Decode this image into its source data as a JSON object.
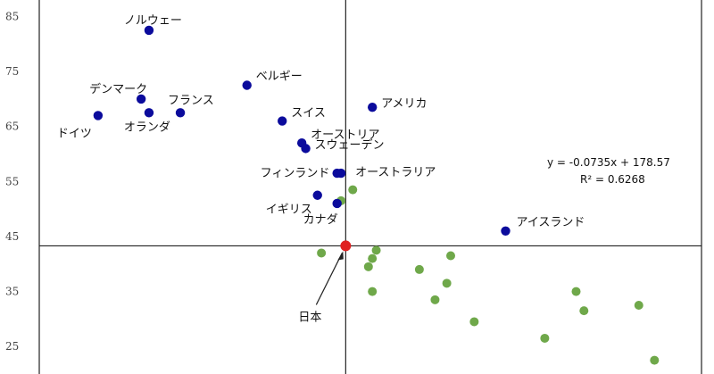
{
  "chart_data": {
    "type": "scatter",
    "y_ticks": [
      25,
      35,
      45,
      55,
      65,
      75,
      85
    ],
    "ylim": [
      20,
      88
    ],
    "xlim": [
      133.5,
      218
    ],
    "reference_lines": {
      "x": 172.6,
      "y": 43.3
    },
    "trendline": {
      "equation": "y = -0.0735x + 178.57",
      "r2": "R² = 0.6268",
      "style": "dotted",
      "from_x": 143,
      "to_x": 208
    },
    "colors": {
      "labeled": "#0b0b9c",
      "unlabeled": "#6fa84a",
      "japan": "#e02020",
      "axis": "#222222"
    },
    "series": [
      {
        "name": "labeled",
        "points": [
          {
            "label": "ノルウェー",
            "x": 147.5,
            "y": 82.5
          },
          {
            "label": "ベルギー",
            "x": 160,
            "y": 72.5
          },
          {
            "label": "デンマーク",
            "x": 146.5,
            "y": 70
          },
          {
            "label": "フランス",
            "x": 151.5,
            "y": 67.5
          },
          {
            "label": "オランダ",
            "x": 147.5,
            "y": 67.5
          },
          {
            "label": "ドイツ",
            "x": 141,
            "y": 67
          },
          {
            "label": "アメリカ",
            "x": 176,
            "y": 68.5
          },
          {
            "label": "スイス",
            "x": 164.5,
            "y": 66
          },
          {
            "label": "オーストリア",
            "x": 167,
            "y": 62
          },
          {
            "label": "スウェーデン",
            "x": 167.5,
            "y": 61
          },
          {
            "label": "フィンランド",
            "x": 171.5,
            "y": 56.5
          },
          {
            "label": "オーストラリア",
            "x": 172,
            "y": 56.5
          },
          {
            "label": "イギリス",
            "x": 169,
            "y": 52.5
          },
          {
            "label": "カナダ",
            "x": 171.5,
            "y": 51
          },
          {
            "label": "アイスランド",
            "x": 193,
            "y": 46
          },
          {
            "label": "日本",
            "x": 172.6,
            "y": 43.3
          }
        ]
      },
      {
        "name": "unlabeled",
        "points": [
          {
            "x": 173.5,
            "y": 53.5
          },
          {
            "x": 172,
            "y": 51.5
          },
          {
            "x": 169.5,
            "y": 42
          },
          {
            "x": 176.5,
            "y": 42.5
          },
          {
            "x": 176,
            "y": 41
          },
          {
            "x": 175.5,
            "y": 39.5
          },
          {
            "x": 176,
            "y": 35
          },
          {
            "x": 182,
            "y": 39
          },
          {
            "x": 186,
            "y": 41.5
          },
          {
            "x": 185.5,
            "y": 36.5
          },
          {
            "x": 184,
            "y": 33.5
          },
          {
            "x": 189,
            "y": 29.5
          },
          {
            "x": 202,
            "y": 35
          },
          {
            "x": 203,
            "y": 31.5
          },
          {
            "x": 210,
            "y": 32.5
          },
          {
            "x": 198,
            "y": 26.5
          },
          {
            "x": 212,
            "y": 22.5
          }
        ]
      }
    ]
  }
}
